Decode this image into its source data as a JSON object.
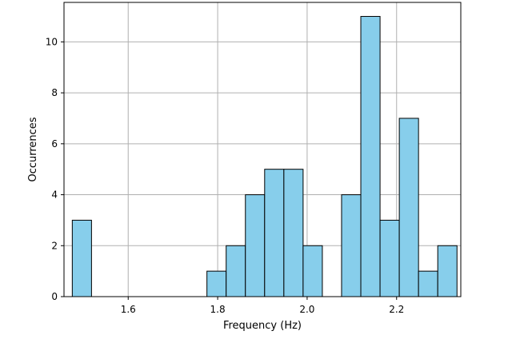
{
  "chart_data": {
    "type": "bar",
    "title": "",
    "xlabel": "Frequency (Hz)",
    "ylabel": "Occurrences",
    "xlim": [
      1.4565,
      2.3435
    ],
    "ylim": [
      0,
      11.55
    ],
    "grid": true,
    "bar_color": "#87ceeb",
    "edge_color": "#000000",
    "bin_width": 0.043,
    "bins": [
      {
        "x0": 1.475,
        "x1": 1.518,
        "count": 3
      },
      {
        "x0": 1.518,
        "x1": 1.561,
        "count": 0
      },
      {
        "x0": 1.561,
        "x1": 1.604,
        "count": 0
      },
      {
        "x0": 1.604,
        "x1": 1.647,
        "count": 0
      },
      {
        "x0": 1.647,
        "x1": 1.69,
        "count": 0
      },
      {
        "x0": 1.69,
        "x1": 1.733,
        "count": 0
      },
      {
        "x0": 1.733,
        "x1": 1.776,
        "count": 0
      },
      {
        "x0": 1.776,
        "x1": 1.819,
        "count": 1
      },
      {
        "x0": 1.819,
        "x1": 1.862,
        "count": 2
      },
      {
        "x0": 1.862,
        "x1": 1.905,
        "count": 4
      },
      {
        "x0": 1.905,
        "x1": 1.948,
        "count": 5
      },
      {
        "x0": 1.948,
        "x1": 1.991,
        "count": 5
      },
      {
        "x0": 1.991,
        "x1": 2.034,
        "count": 2
      },
      {
        "x0": 2.034,
        "x1": 2.077,
        "count": 0
      },
      {
        "x0": 2.077,
        "x1": 2.12,
        "count": 4
      },
      {
        "x0": 2.12,
        "x1": 2.163,
        "count": 11
      },
      {
        "x0": 2.163,
        "x1": 2.206,
        "count": 3
      },
      {
        "x0": 2.206,
        "x1": 2.249,
        "count": 7
      },
      {
        "x0": 2.249,
        "x1": 2.292,
        "count": 1
      },
      {
        "x0": 2.292,
        "x1": 2.335,
        "count": 2
      }
    ],
    "x_ticks": [
      {
        "value": 1.6,
        "label": "1.6"
      },
      {
        "value": 1.8,
        "label": "1.8"
      },
      {
        "value": 2.0,
        "label": "2.0"
      },
      {
        "value": 2.2,
        "label": "2.2"
      }
    ],
    "y_ticks": [
      {
        "value": 0,
        "label": "0"
      },
      {
        "value": 2,
        "label": "2"
      },
      {
        "value": 4,
        "label": "4"
      },
      {
        "value": 6,
        "label": "6"
      },
      {
        "value": 8,
        "label": "8"
      },
      {
        "value": 10,
        "label": "10"
      }
    ]
  }
}
